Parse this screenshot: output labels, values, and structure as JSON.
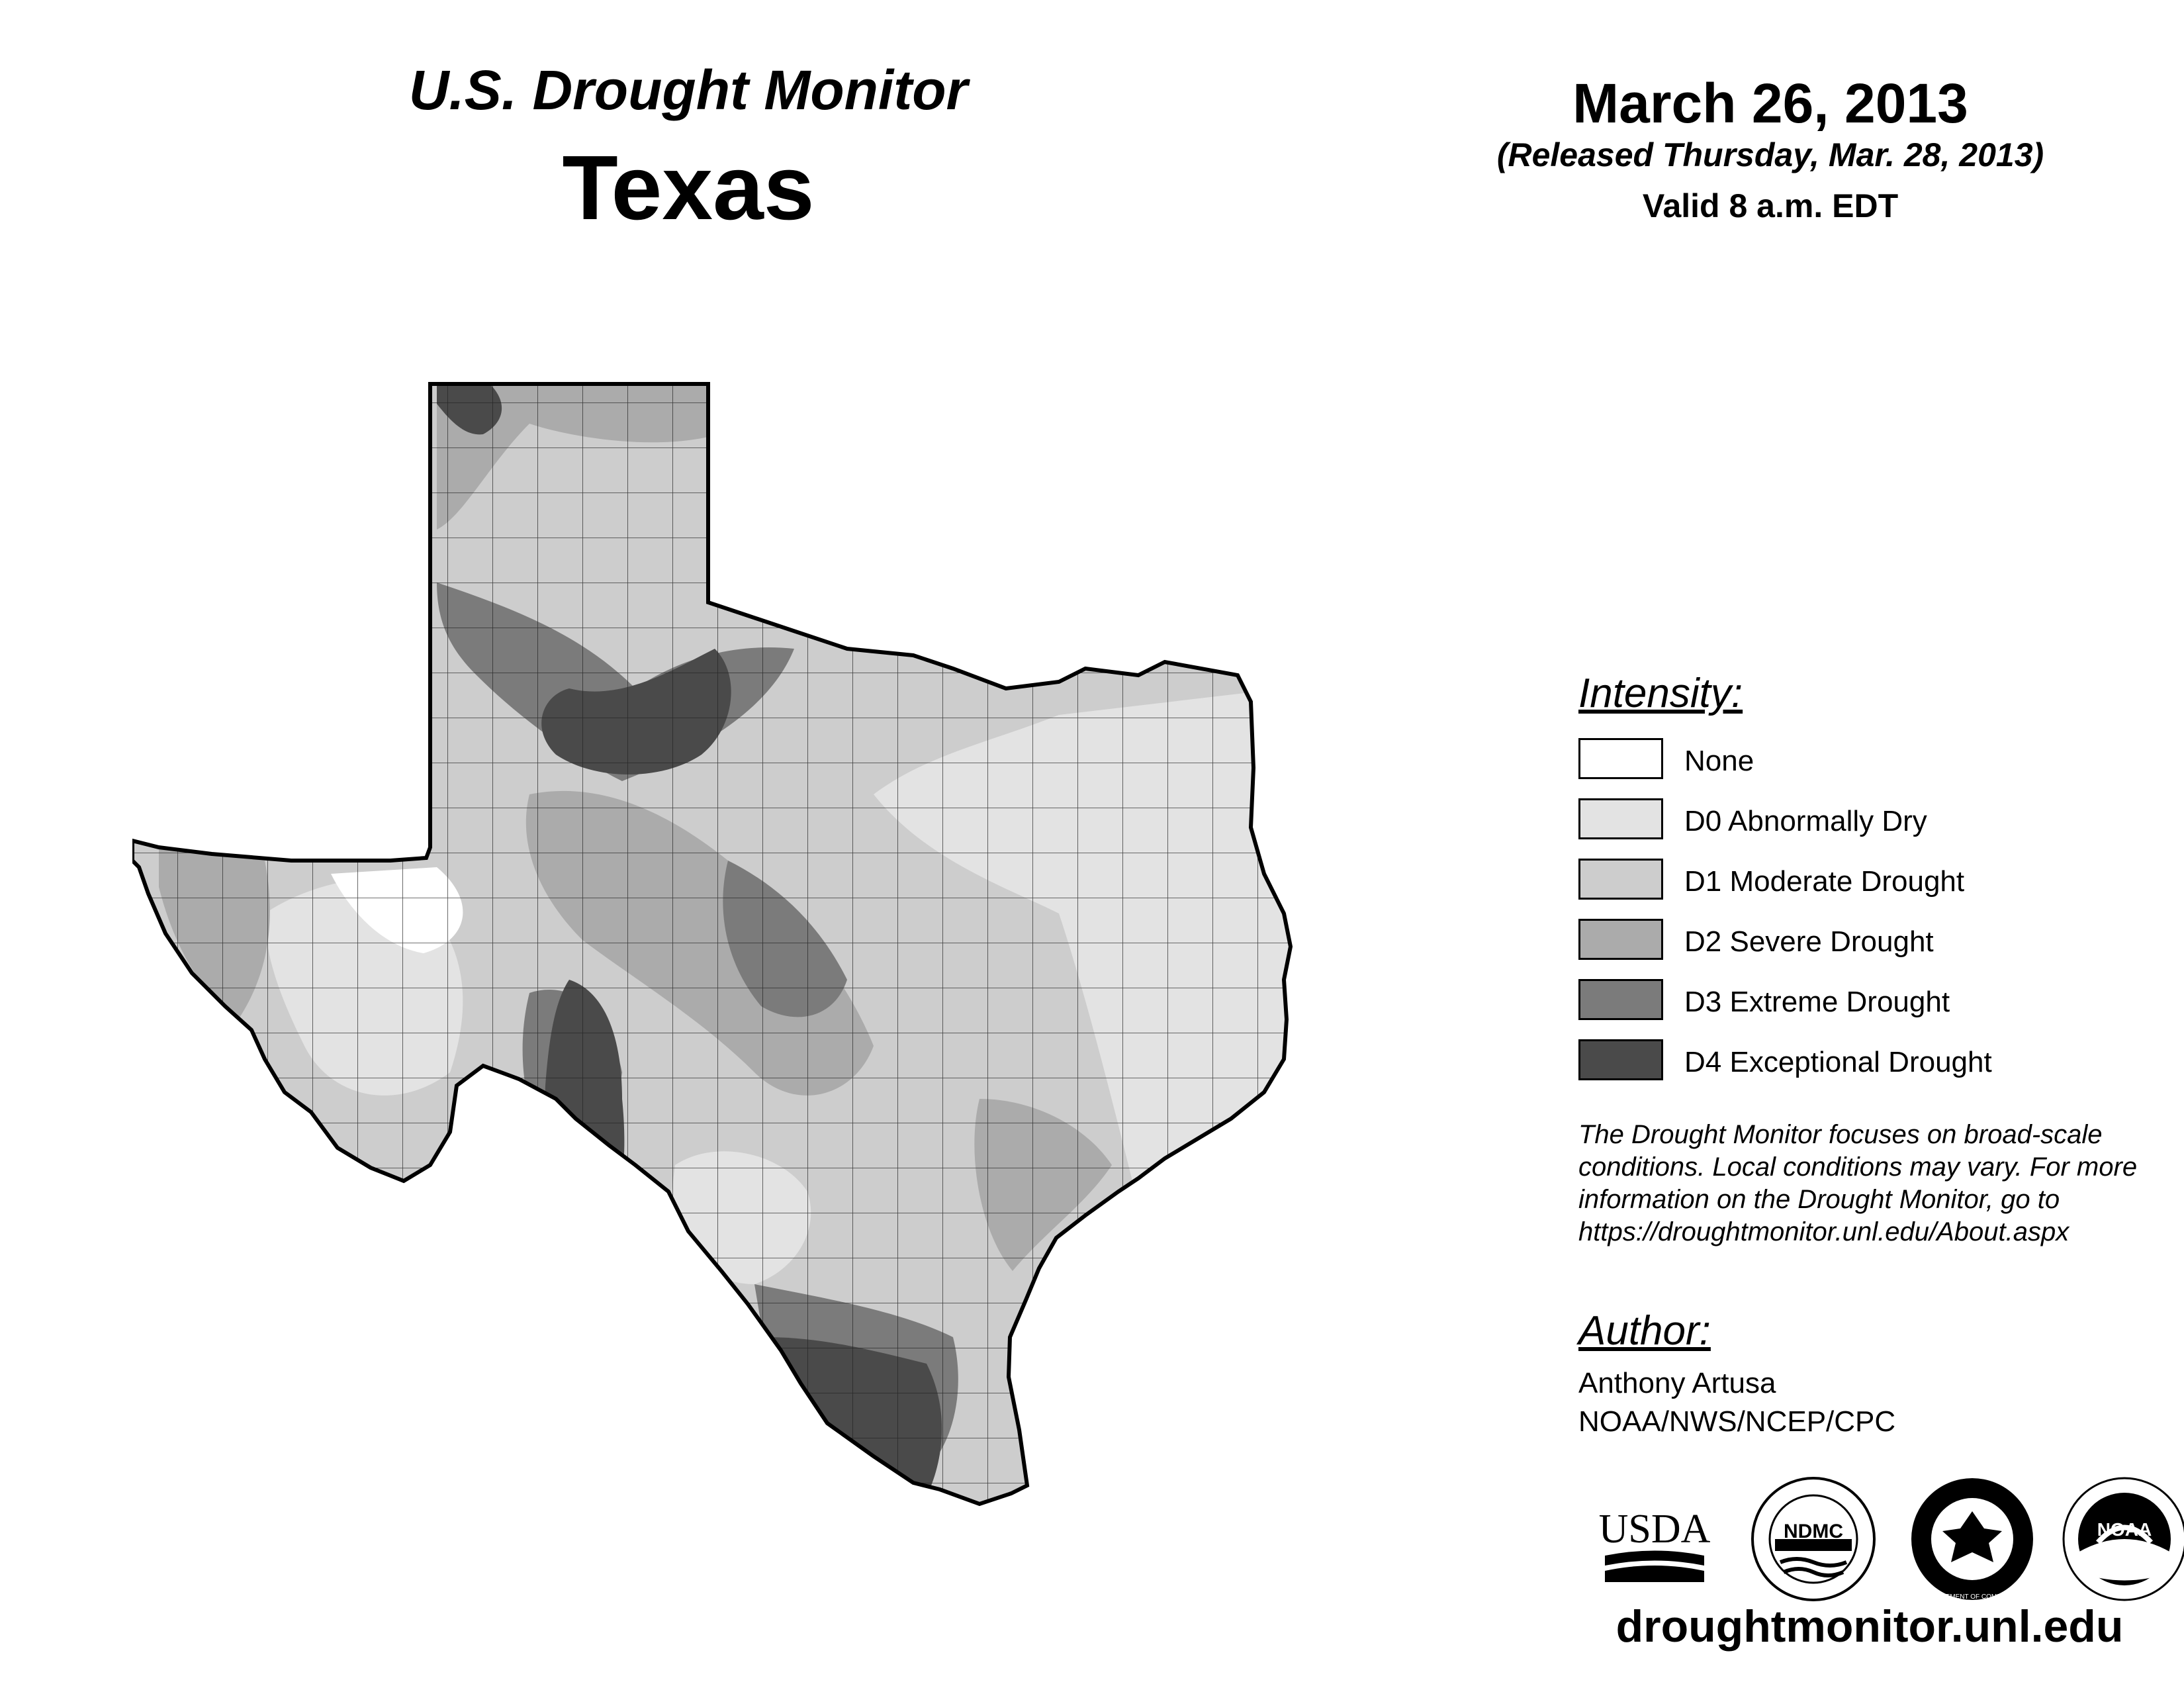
{
  "header": {
    "subtitle": "U.S. Drought Monitor",
    "state": "Texas",
    "date": "March 26, 2013",
    "released": "(Released Thursday, Mar. 28, 2013)",
    "valid": "Valid 8 a.m. EDT"
  },
  "legend": {
    "title": "Intensity:",
    "items": [
      {
        "label": "None",
        "color": "#ffffff"
      },
      {
        "label": "D0 Abnormally Dry",
        "color": "#e3e3e3"
      },
      {
        "label": "D1 Moderate Drought",
        "color": "#cdcdcd"
      },
      {
        "label": "D2 Severe Drought",
        "color": "#ababab"
      },
      {
        "label": "D3 Extreme Drought",
        "color": "#7b7b7b"
      },
      {
        "label": "D4 Exceptional Drought",
        "color": "#4a4a4a"
      }
    ]
  },
  "note": "The Drought Monitor focuses on broad-scale conditions. Local conditions may vary. For more information on the Drought Monitor, go to https://droughtmonitor.unl.edu/About.aspx",
  "author": {
    "title": "Author:",
    "name": "Anthony Artusa",
    "org": "NOAA/NWS/NCEP/CPC"
  },
  "logos": [
    {
      "name": "usda",
      "text": "USDA"
    },
    {
      "name": "ndmc",
      "text": "NDMC"
    },
    {
      "name": "commerce",
      "text": "DEPARTMENT OF COMMERCE"
    },
    {
      "name": "noaa",
      "text": "NOAA"
    }
  ],
  "website": "droughtmonitor.unl.edu"
}
